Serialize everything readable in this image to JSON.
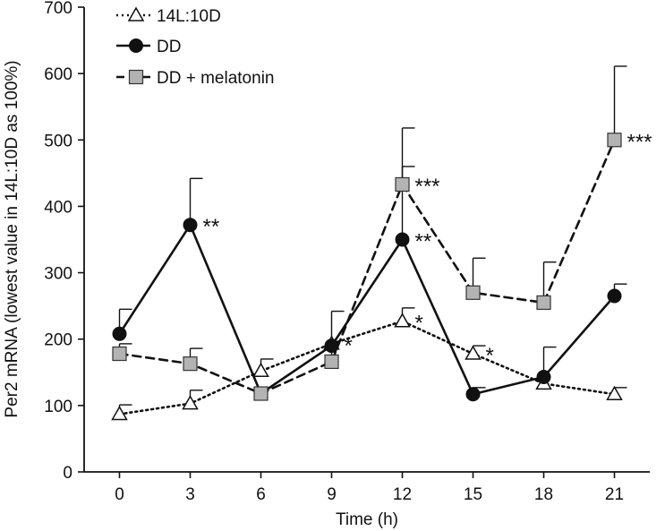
{
  "chart_data": {
    "type": "line",
    "title": "",
    "xlabel": "Time (h)",
    "ylabel": "Per2 mRNA (lowest value in 14L:10D as 100%)",
    "x": [
      0,
      3,
      6,
      9,
      12,
      15,
      18,
      21
    ],
    "xlim": [
      -1.5,
      22.5
    ],
    "ylim": [
      0,
      700
    ],
    "yticks": [
      0,
      100,
      200,
      300,
      400,
      500,
      600,
      700
    ],
    "grid": false,
    "legend_position": "top-left",
    "series": [
      {
        "name": "14L:10D",
        "line_style": "dotted",
        "marker": "open-triangle",
        "color": "#000000",
        "values": [
          87,
          103,
          152,
          193,
          227,
          178,
          133,
          117
        ],
        "error": [
          14,
          20,
          18,
          0,
          20,
          12,
          0,
          10
        ]
      },
      {
        "name": "DD",
        "line_style": "solid",
        "marker": "filled-circle",
        "color": "#000000",
        "values": [
          208,
          372,
          118,
          190,
          350,
          117,
          143,
          265
        ],
        "error": [
          37,
          70,
          0,
          0,
          110,
          10,
          45,
          18
        ]
      },
      {
        "name": "DD + melatonin",
        "line_style": "dashed",
        "marker": "grey-square",
        "color": "#b3b3b3",
        "values": [
          178,
          163,
          118,
          166,
          433,
          270,
          255,
          500
        ],
        "error": [
          15,
          23,
          0,
          76,
          85,
          52,
          61,
          111
        ]
      }
    ],
    "annotations": [
      {
        "text": "**",
        "x": 3,
        "y": 372
      },
      {
        "text": "*",
        "x": 9,
        "y": 193
      },
      {
        "text": "*",
        "x": 12,
        "y": 227
      },
      {
        "text": "***",
        "x": 12,
        "y": 433
      },
      {
        "text": "**",
        "x": 12,
        "y": 350
      },
      {
        "text": "*",
        "x": 15,
        "y": 178
      },
      {
        "text": "***",
        "x": 21,
        "y": 500
      }
    ]
  }
}
